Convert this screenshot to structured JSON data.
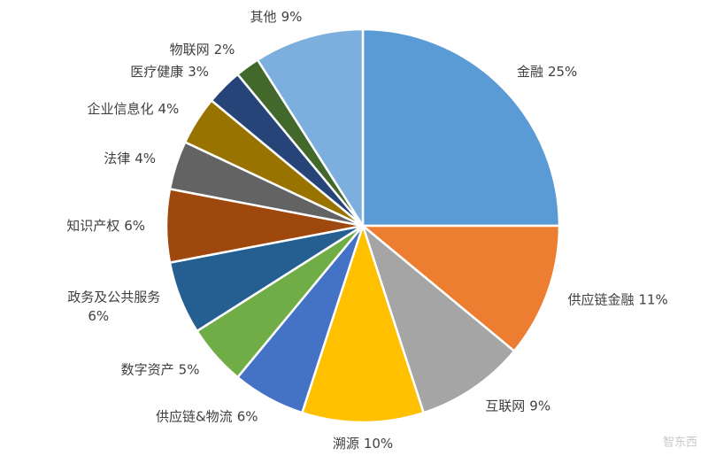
{
  "chart_data": {
    "type": "pie",
    "categories": [
      "金融",
      "供应链金融",
      "互联网",
      "溯源",
      "供应链&物流",
      "数字资产",
      "政务及公共服务",
      "知识产权",
      "法律",
      "企业信息化",
      "医疗健康",
      "物联网",
      "其他"
    ],
    "values": [
      25,
      11,
      9,
      10,
      6,
      5,
      6,
      6,
      4,
      4,
      3,
      2,
      9
    ],
    "value_labels": [
      "25%",
      "11%",
      "9%",
      "10%",
      "6%",
      "5%",
      "6%",
      "6%",
      "4%",
      "4%",
      "3%",
      "2%",
      "9%"
    ],
    "colors": [
      "#5b9bd5",
      "#ed7d31",
      "#a5a5a5",
      "#ffc000",
      "#4472c4",
      "#70ad47",
      "#255e91",
      "#9e480e",
      "#636363",
      "#997300",
      "#264478",
      "#43682b",
      "#7cafdd"
    ]
  },
  "watermark": "智东西"
}
